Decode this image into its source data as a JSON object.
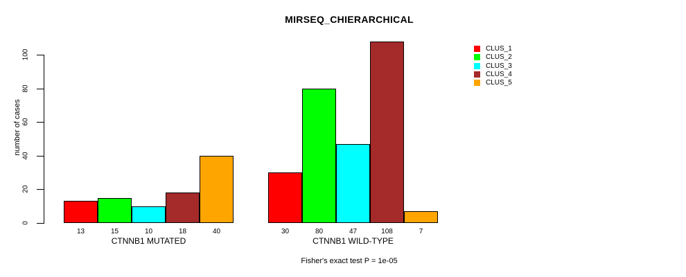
{
  "title": "MIRSEQ_CHIERARCHICAL",
  "annotation": "Fisher's exact test P = 1e-05",
  "y_axis": {
    "label": "number of cases",
    "tick_labels": [
      "0",
      "20",
      "40",
      "60",
      "80",
      "100"
    ]
  },
  "chart_data": {
    "type": "bar",
    "title": "MIRSEQ_CHIERARCHICAL",
    "xlabel": "",
    "ylabel": "number of cases",
    "ylim": [
      0,
      100
    ],
    "yticks": [
      0,
      20,
      40,
      60,
      80,
      100
    ],
    "grid": false,
    "legend_position": "right",
    "categories": [
      "CTNNB1 MUTATED",
      "CTNNB1 WILD-TYPE"
    ],
    "groups": [
      {
        "label": "CTNNB1 MUTATED",
        "values": [
          13,
          15,
          10,
          18,
          40
        ]
      },
      {
        "label": "CTNNB1 WILD-TYPE",
        "values": [
          30,
          80,
          47,
          108,
          7
        ]
      }
    ],
    "series": [
      {
        "name": "CLUS_1",
        "color": "#FF0000",
        "values": [
          13,
          30
        ]
      },
      {
        "name": "CLUS_2",
        "color": "#00FF00",
        "values": [
          15,
          80
        ]
      },
      {
        "name": "CLUS_3",
        "color": "#00FFFF",
        "values": [
          10,
          47
        ]
      },
      {
        "name": "CLUS_4",
        "color": "#A52A2A",
        "values": [
          18,
          108
        ]
      },
      {
        "name": "CLUS_5",
        "color": "#FFA500",
        "values": [
          40,
          7
        ]
      }
    ],
    "legend": [
      {
        "label": "CLUS_1",
        "color": "#FF0000"
      },
      {
        "label": "CLUS_2",
        "color": "#00FF00"
      },
      {
        "label": "CLUS_3",
        "color": "#00FFFF"
      },
      {
        "label": "CLUS_4",
        "color": "#A52A2A"
      },
      {
        "label": "CLUS_5",
        "color": "#FFA500"
      }
    ],
    "annotation": "Fisher's exact test P = 1e-05"
  }
}
